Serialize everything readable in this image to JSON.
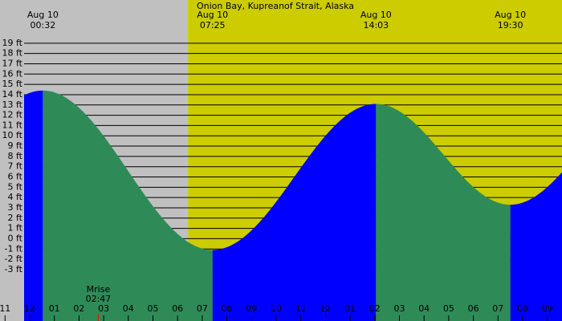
{
  "chart_data": {
    "type": "tide",
    "title": "Onion Bay, Kupreanof Strait, Alaska",
    "events": [
      {
        "date": "Aug 10",
        "time": "00:32",
        "height": 14.4
      },
      {
        "date": "Aug 10",
        "time": "07:25",
        "height": -1.1
      },
      {
        "date": "Aug 10",
        "time": "14:03",
        "height": 13.1
      },
      {
        "date": "Aug 10",
        "time": "19:30",
        "height": 3.3
      }
    ],
    "moonrise": {
      "label": "Mrise",
      "time": "02:47"
    },
    "hour_labels": [
      "11",
      "12",
      "01",
      "02",
      "03",
      "04",
      "05",
      "06",
      "07",
      "08",
      "09",
      "10",
      "11",
      "12",
      "01",
      "02",
      "03",
      "04",
      "05",
      "06",
      "07",
      "08",
      "09"
    ],
    "sunrise_hour": 6.42,
    "ylim": [
      -8,
      23.2
    ],
    "yticks": [
      {
        "value": 19,
        "label": "19 ft"
      },
      {
        "value": 18,
        "label": "18 ft"
      },
      {
        "value": 17,
        "label": "17 ft"
      },
      {
        "value": 16,
        "label": "16 ft"
      },
      {
        "value": 15,
        "label": "15 ft"
      },
      {
        "value": 14,
        "label": "14 ft"
      },
      {
        "value": 13,
        "label": "13 ft"
      },
      {
        "value": 12,
        "label": "12 ft"
      },
      {
        "value": 11,
        "label": "11 ft"
      },
      {
        "value": 10,
        "label": "10 ft"
      },
      {
        "value": 9,
        "label": "9 ft"
      },
      {
        "value": 8,
        "label": "8 ft"
      },
      {
        "value": 7,
        "label": "7 ft"
      },
      {
        "value": 6,
        "label": "6 ft"
      },
      {
        "value": 5,
        "label": "5 ft"
      },
      {
        "value": 4,
        "label": "4 ft"
      },
      {
        "value": 3,
        "label": "3 ft"
      },
      {
        "value": 2,
        "label": "2 ft"
      },
      {
        "value": 1,
        "label": "1 ft"
      },
      {
        "value": 0,
        "label": "0 ft"
      },
      {
        "value": -1,
        "label": "-1 ft"
      },
      {
        "value": -2,
        "label": "-2 ft"
      },
      {
        "value": -3,
        "label": "-3 ft"
      }
    ],
    "grid": true,
    "night_color": "#c0c0c0",
    "day_color": "#cccc00",
    "rising_color": "#0000ff",
    "falling_color": "#2e8b57"
  }
}
